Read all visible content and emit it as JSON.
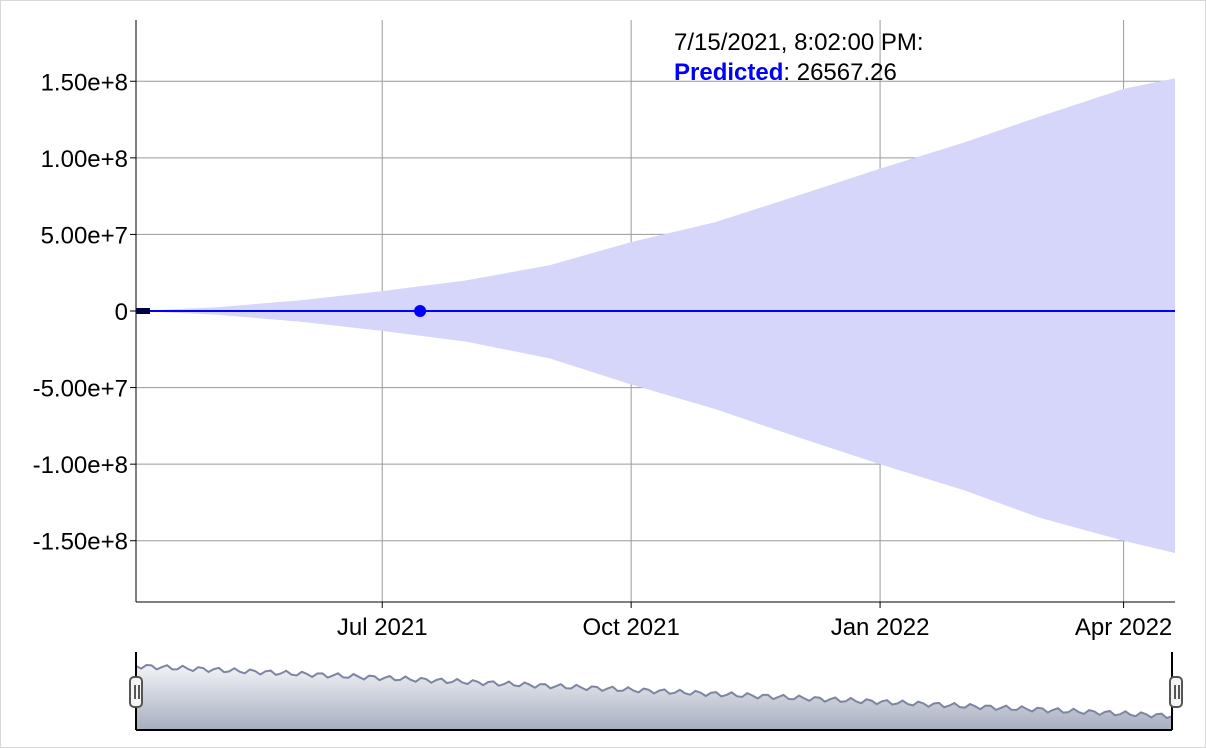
{
  "legend": {
    "timestamp": "7/15/2021, 8:02:00 PM:",
    "series_label": "Predicted",
    "separator": ": ",
    "value": "26567.26"
  },
  "colors": {
    "line": "#0000ff",
    "band": "#d6d6fa",
    "grid": "#9a9a9a",
    "axis": "#000000",
    "selector_fill_top": "#f2f3f7",
    "selector_fill_bottom": "#a7aebf",
    "selector_line": "#7c86a1"
  },
  "chart_data": {
    "type": "line",
    "x_axis": {
      "type": "date",
      "range": [
        "2021-04-01",
        "2022-04-20"
      ],
      "tick_dates": [
        "2021-07-01",
        "2021-10-01",
        "2022-01-01",
        "2022-04-01"
      ],
      "tick_labels": [
        "Jul 2021",
        "Oct 2021",
        "Jan 2022",
        "Apr 2022"
      ]
    },
    "y_axis": {
      "range": [
        -190000000,
        190000000
      ],
      "tick_values": [
        150000000,
        100000000,
        50000000,
        0,
        -50000000,
        -100000000,
        -150000000
      ],
      "tick_labels": [
        "1.50e+8",
        "1.00e+8",
        "5.00e+7",
        "0",
        "-5.00e+7",
        "-1.00e+8",
        "-1.50e+8"
      ]
    },
    "grid": true,
    "series": [
      {
        "name": "Predicted",
        "x": [
          "2021-04-01",
          "2021-05-01",
          "2021-06-01",
          "2021-07-01",
          "2021-08-01",
          "2021-09-01",
          "2021-10-01",
          "2021-11-01",
          "2021-12-01",
          "2022-01-01",
          "2022-02-01",
          "2022-03-01",
          "2022-04-01",
          "2022-04-20"
        ],
        "y": [
          0,
          0,
          0,
          0,
          0,
          0,
          0,
          0,
          0,
          0,
          0,
          0,
          0,
          0
        ],
        "upper": [
          0,
          2500000,
          7000000,
          13000000,
          20000000,
          30000000,
          45000000,
          58000000,
          75000000,
          93000000,
          110000000,
          127000000,
          145000000,
          152000000
        ],
        "lower": [
          0,
          -2500000,
          -7000000,
          -13000000,
          -20000000,
          -31000000,
          -48000000,
          -64000000,
          -82000000,
          -100000000,
          -117000000,
          -135000000,
          -150000000,
          -158000000
        ]
      }
    ],
    "highlighted_point": {
      "x": "2021-07-15",
      "y": 26567.26
    }
  }
}
